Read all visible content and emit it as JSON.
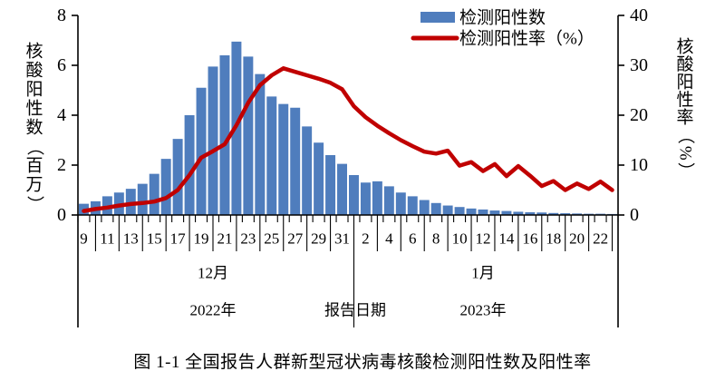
{
  "figure": {
    "caption": "图 1-1  全国报告人群新型冠状病毒核酸检测阳性数及阳性率"
  },
  "chart_data": {
    "type": "combo_bar_line",
    "categories": [
      "9",
      "10",
      "11",
      "12",
      "13",
      "14",
      "15",
      "16",
      "17",
      "18",
      "19",
      "20",
      "21",
      "22",
      "23",
      "24",
      "25",
      "26",
      "27",
      "28",
      "29",
      "30",
      "31",
      "1",
      "2",
      "3",
      "4",
      "5",
      "6",
      "7",
      "8",
      "9",
      "10",
      "11",
      "12",
      "13",
      "14",
      "15",
      "16",
      "17",
      "18",
      "19",
      "20",
      "21",
      "22",
      "23"
    ],
    "category_label_every": 2,
    "series": [
      {
        "name": "检测阳性数",
        "type": "bar",
        "axis": "left",
        "color": "#4f7dbd",
        "values": [
          0.45,
          0.55,
          0.75,
          0.9,
          1.05,
          1.25,
          1.65,
          2.25,
          3.05,
          4.0,
          5.1,
          5.95,
          6.4,
          6.95,
          6.35,
          5.65,
          4.75,
          4.45,
          4.3,
          3.55,
          2.9,
          2.4,
          2.05,
          1.6,
          1.3,
          1.35,
          1.15,
          0.9,
          0.75,
          0.6,
          0.48,
          0.38,
          0.32,
          0.26,
          0.22,
          0.18,
          0.16,
          0.13,
          0.11,
          0.1,
          0.08,
          0.07,
          0.06,
          0.05,
          0.05,
          0.04
        ]
      },
      {
        "name": "检测阳性率（%）",
        "type": "line",
        "axis": "right",
        "color": "#c00000",
        "values": [
          0.8,
          1.2,
          1.5,
          1.9,
          2.2,
          2.4,
          2.7,
          3.4,
          5.0,
          8.0,
          11.5,
          12.8,
          14.2,
          18.0,
          22.5,
          26.0,
          28.0,
          29.4,
          28.7,
          28.0,
          27.3,
          26.5,
          25.2,
          21.8,
          19.6,
          17.9,
          16.4,
          15.0,
          13.8,
          12.7,
          12.3,
          12.9,
          9.9,
          10.6,
          8.8,
          10.2,
          7.8,
          9.8,
          7.9,
          5.8,
          6.8,
          5.0,
          6.3,
          5.2,
          6.7,
          5.0
        ]
      }
    ],
    "left_axis": {
      "label": "核酸阳性数（百万）",
      "ticks": [
        0,
        2,
        4,
        6,
        8
      ],
      "min": 0,
      "max": 8
    },
    "right_axis": {
      "label": "核酸阳性率（%）",
      "ticks": [
        0,
        10,
        20,
        30,
        40
      ],
      "min": 0,
      "max": 40
    },
    "x_axis": {
      "title": "报告日期",
      "groups": [
        {
          "month": "12月",
          "year": "2022年",
          "start_index": 0,
          "end_index": 22
        },
        {
          "month": "1月",
          "year": "2023年",
          "start_index": 23,
          "end_index": 45
        }
      ]
    },
    "legend": {
      "position": "top-right"
    },
    "grid": false
  }
}
